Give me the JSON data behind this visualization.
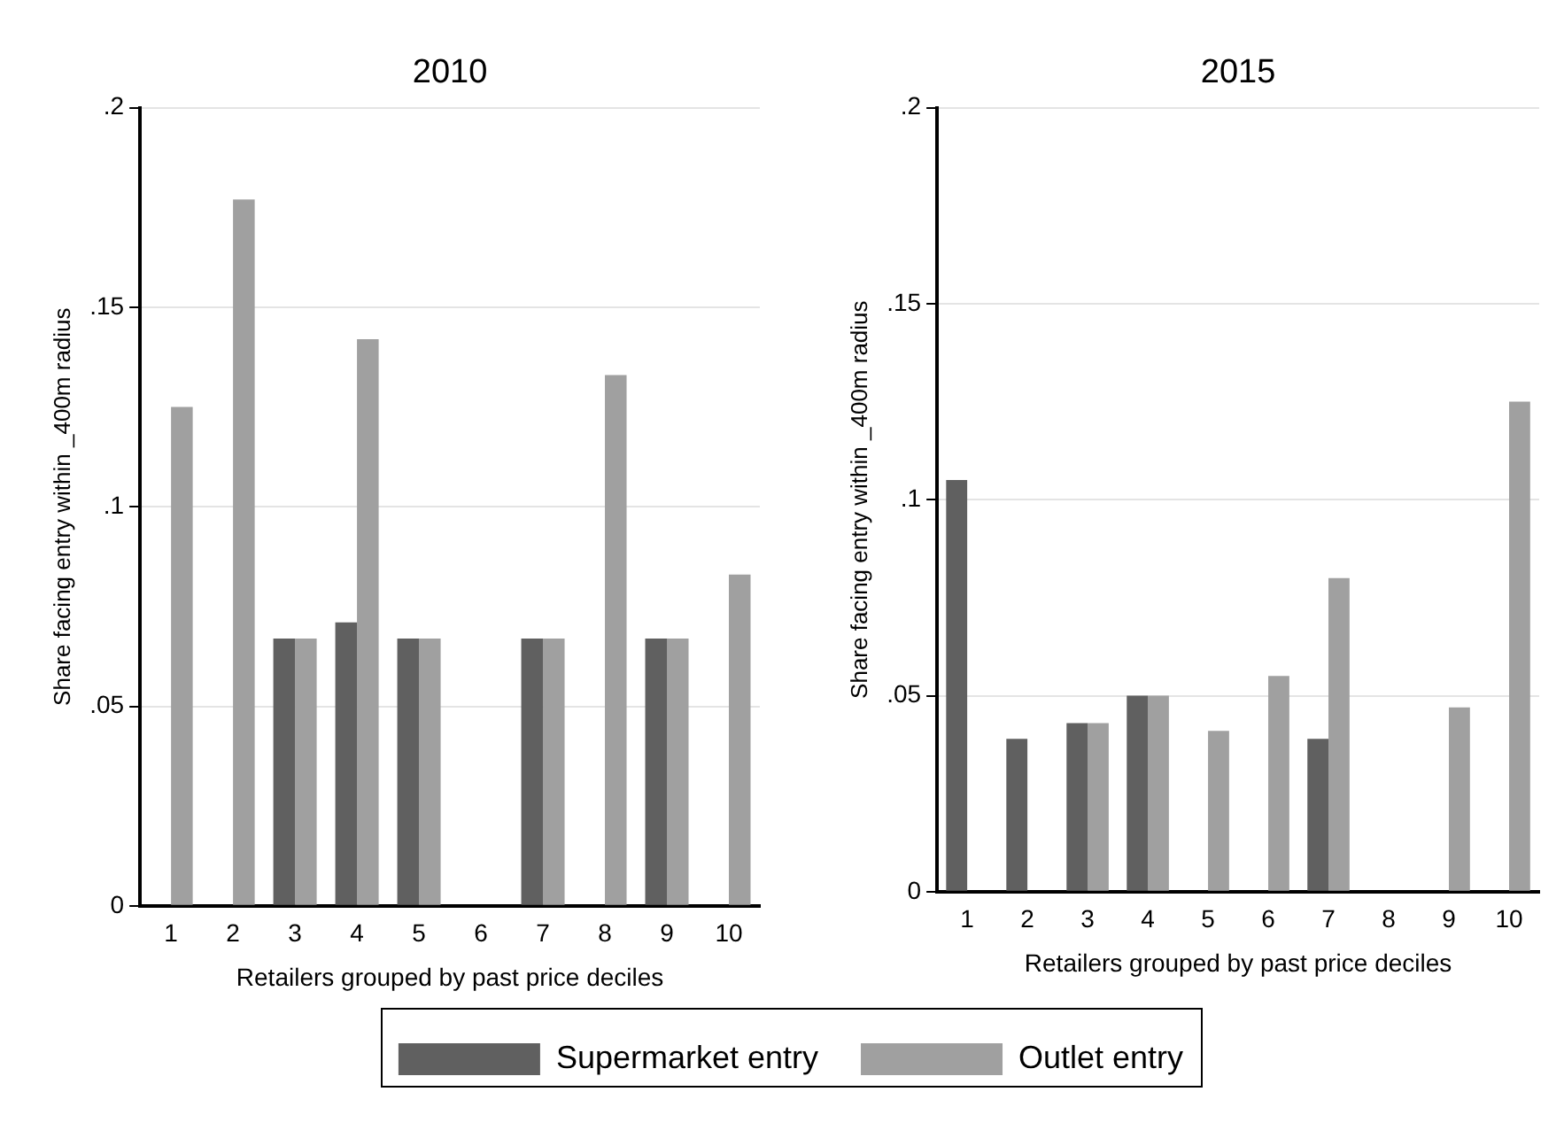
{
  "chart_data": [
    {
      "type": "bar",
      "title": "2010",
      "xlabel": "Retailers grouped by past price deciles",
      "ylabel": "Share facing entry within _400m radius",
      "categories": [
        "1",
        "2",
        "3",
        "4",
        "5",
        "6",
        "7",
        "8",
        "9",
        "10"
      ],
      "series": [
        {
          "name": "Supermarket entry",
          "color": "#606060",
          "values": [
            0,
            0,
            0.067,
            0.071,
            0.067,
            0,
            0.067,
            0,
            0.067,
            0
          ]
        },
        {
          "name": "Outlet entry",
          "color": "#a0a0a0",
          "values": [
            0.125,
            0.177,
            0.067,
            0.142,
            0.067,
            0,
            0.067,
            0.133,
            0.067,
            0.083
          ]
        }
      ],
      "ylim": [
        0,
        0.2
      ],
      "yticks": [
        0,
        {
          "value": 0.05,
          "label": ".05"
        },
        {
          "value": 0.1,
          "label": ".1"
        },
        {
          "value": 0.15,
          "label": ".15"
        },
        {
          "value": 0.2,
          "label": ".2"
        }
      ],
      "grid": "y",
      "legend": "bottom"
    },
    {
      "type": "bar",
      "title": "2015",
      "xlabel": "Retailers grouped by past price deciles",
      "ylabel": "Share facing entry within _400m radius",
      "categories": [
        "1",
        "2",
        "3",
        "4",
        "5",
        "6",
        "7",
        "8",
        "9",
        "10"
      ],
      "series": [
        {
          "color": "#606060",
          "values": [
            0.105,
            0.039,
            0.043,
            0.05,
            0,
            0,
            0.039,
            0,
            0,
            0
          ]
        },
        {
          "color": "#a0a0a0",
          "values": [
            0,
            0,
            0.043,
            0.05,
            0.041,
            0.055,
            0.08,
            0,
            0.047,
            0.125
          ]
        }
      ],
      "ylim": [
        0,
        0.2
      ],
      "yticks": [
        0,
        {
          "value": 0.05,
          "label": ".05"
        },
        {
          "value": 0.1,
          "label": ".1"
        },
        {
          "value": 0.15,
          "label": ".15"
        },
        {
          "value": 0.2,
          "label": ".2"
        }
      ],
      "grid": "y"
    }
  ]
}
